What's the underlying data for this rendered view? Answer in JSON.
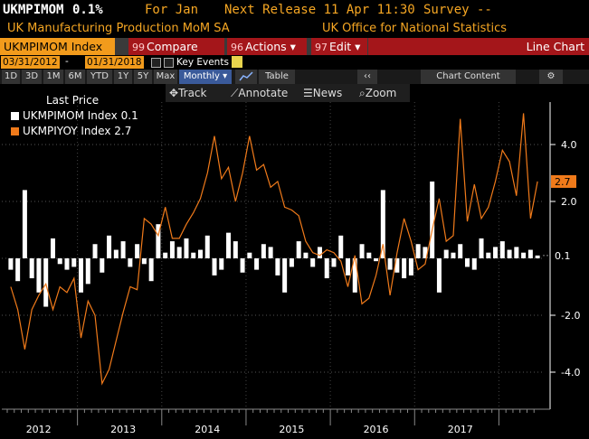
{
  "header": {
    "ticker": "UKMPIMOM",
    "value": "0.1%",
    "period": "For Jan",
    "next_release": "Next Release 11 Apr 11:30",
    "survey": "Survey --",
    "description": "UK Manufacturing Production MoM SA",
    "source": "UK Office for National Statistics"
  },
  "toolbar": {
    "index_label": "UKMPIMOM Index",
    "compare_num": "99",
    "compare_label": "Compare",
    "actions_num": "96",
    "actions_label": "Actions ▾",
    "edit_num": "97",
    "edit_label": "Edit ▾",
    "chart_type": "Line Chart"
  },
  "dates": {
    "start": "03/31/2012",
    "end": "01/31/2018",
    "key_events": "Key Events"
  },
  "periods": {
    "buttons": [
      "1D",
      "3D",
      "1M",
      "6M",
      "YTD",
      "1Y",
      "5Y",
      "Max"
    ],
    "frequency": "Monthly ▾",
    "table": "Table",
    "chart_content": "Chart Content"
  },
  "chart_toolbar": {
    "track": "Track",
    "annotate": "Annotate",
    "news": "News",
    "zoom": "Zoom"
  },
  "legend": {
    "title": "Last Price",
    "items": [
      {
        "name": "UKMPIMOM Index",
        "value": "0.1",
        "color": "#ffffff"
      },
      {
        "name": "UKMPIYOY Index",
        "value": "2.7",
        "color": "#f07a1a"
      }
    ]
  },
  "chart_data": {
    "type": "bar",
    "yticks": [
      "4.0",
      "2.0",
      "-2.0",
      "-4.0"
    ],
    "ylim": [
      -5.3,
      5.3
    ],
    "xlabels": [
      "2012",
      "2013",
      "2014",
      "2015",
      "2016",
      "2017"
    ],
    "last_values": {
      "mom": "0.1",
      "yoy": "2.7"
    },
    "series": [
      {
        "name": "UKMPIMOM Index",
        "type": "bar",
        "color": "#ffffff",
        "values": [
          -0.4,
          -0.8,
          2.4,
          -0.7,
          -1.2,
          -1.7,
          0.7,
          -0.2,
          -0.4,
          -0.3,
          -1.2,
          -0.9,
          0.5,
          -0.5,
          0.8,
          0.3,
          0.6,
          -0.3,
          0.5,
          -0.2,
          -0.8,
          1.2,
          0.2,
          0.6,
          0.4,
          0.7,
          0.2,
          0.3,
          0.8,
          -0.6,
          -0.4,
          0.9,
          0.6,
          -0.5,
          0.2,
          -0.4,
          0.5,
          0.4,
          -0.6,
          -1.2,
          -0.3,
          0.6,
          0.2,
          -0.3,
          0.4,
          -0.7,
          -0.3,
          0.8,
          -0.6,
          -1.2,
          0.5,
          0.2,
          -0.1,
          2.4,
          -0.4,
          -0.5,
          -0.7,
          -0.6,
          0.5,
          0.4,
          2.7,
          -1.2,
          0.3,
          0.2,
          0.5,
          -0.3,
          -0.4,
          0.7,
          0.2,
          0.4,
          0.6,
          0.3,
          0.4,
          0.2,
          0.3,
          0.1
        ]
      },
      {
        "name": "UKMPIYOY Index",
        "type": "line",
        "color": "#f07a1a",
        "values": [
          -1.0,
          -1.8,
          -3.2,
          -1.8,
          -1.3,
          -0.9,
          -1.8,
          -1.0,
          -1.2,
          -0.7,
          -2.8,
          -1.5,
          -2.0,
          -4.4,
          -3.9,
          -2.9,
          -1.9,
          -1.0,
          -1.1,
          1.4,
          1.2,
          0.8,
          1.8,
          0.7,
          0.7,
          1.2,
          1.6,
          2.1,
          3.0,
          4.3,
          2.8,
          3.2,
          2.0,
          3.0,
          4.3,
          3.1,
          3.3,
          2.5,
          2.7,
          1.8,
          1.7,
          1.5,
          0.6,
          0.2,
          0.1,
          0.3,
          0.2,
          -0.1,
          -1.0,
          0.1,
          -1.6,
          -1.4,
          -0.6,
          0.5,
          -1.3,
          0.2,
          1.4,
          0.6,
          -0.4,
          -0.2,
          1.0,
          2.1,
          0.6,
          0.8,
          4.9,
          1.3,
          2.6,
          1.4,
          1.8,
          2.7,
          3.8,
          3.4,
          2.2,
          5.1,
          1.4,
          2.7
        ]
      }
    ]
  }
}
